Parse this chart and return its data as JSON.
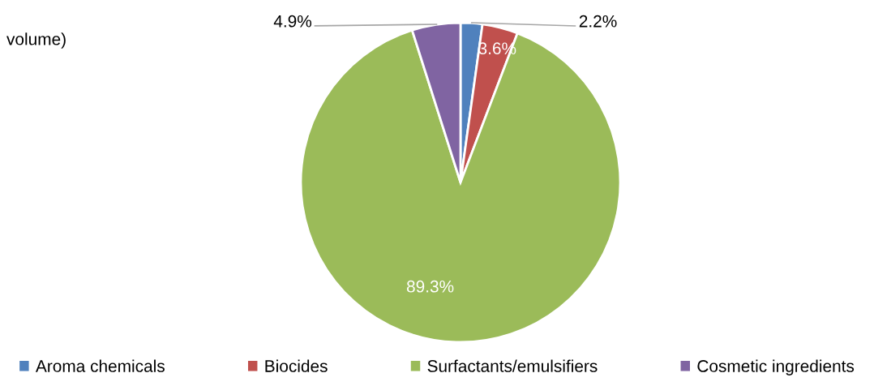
{
  "chart_data": {
    "type": "pie",
    "categories": [
      "Aroma chemicals",
      "Biocides",
      "Surfactants/emulsifiers",
      "Cosmetic ingredients"
    ],
    "values": [
      2.2,
      3.6,
      89.3,
      4.9
    ],
    "colors": [
      "#4f81bd",
      "#c0504d",
      "#9bbb59",
      "#8064a2"
    ],
    "value_labels": [
      "2.2%",
      "3.6%",
      "89.3%",
      "4.9%"
    ],
    "annotations": [
      "volume)"
    ],
    "legend": "bottom"
  }
}
